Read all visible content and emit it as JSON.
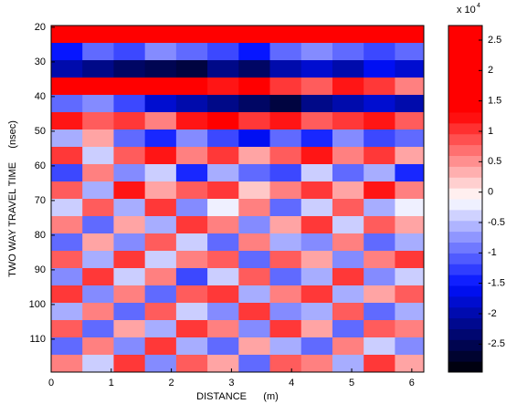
{
  "chart_data": {
    "type": "heatmap",
    "xlabel": "DISTANCE      (m)",
    "ylabel": "TWO WAY TRAVEL TIME     (nsec)",
    "x": [
      0.26,
      0.78,
      1.3,
      1.82,
      2.34,
      2.86,
      3.38,
      3.9,
      4.42,
      4.94,
      5.46,
      5.98
    ],
    "y": [
      22,
      27,
      32,
      37,
      42,
      47,
      52,
      57,
      62,
      67,
      72,
      77,
      82,
      87,
      92,
      97,
      102,
      107,
      112,
      117
    ],
    "z": [
      [
        2,
        2,
        2,
        2,
        2,
        2,
        2,
        2,
        2,
        2,
        2,
        2
      ],
      [
        -1.5,
        -1,
        -1.2,
        -0.8,
        -1,
        -1.2,
        -1.5,
        -1,
        -0.8,
        -1,
        -1.2,
        -1
      ],
      [
        -2,
        -2.2,
        -2.4,
        -2.5,
        -2.6,
        -2.2,
        -2.4,
        -2,
        -1.8,
        -2,
        -1.6,
        -1.8
      ],
      [
        1.5,
        1.8,
        2,
        1.6,
        1.8,
        1.2,
        1.4,
        1,
        0.8,
        1.2,
        1,
        0.6
      ],
      [
        -1,
        -0.8,
        -1.2,
        -1.8,
        -2,
        -2.2,
        -2.4,
        -2.6,
        -2.2,
        -2,
        -1.8,
        -2
      ],
      [
        1.2,
        0.8,
        1,
        0.6,
        1.2,
        1.4,
        1,
        1.2,
        0.8,
        1,
        1.2,
        0.8
      ],
      [
        -0.6,
        0.4,
        -1,
        -1.4,
        -0.8,
        -1.2,
        -1.6,
        -1,
        -1.4,
        -0.8,
        -1.2,
        -1
      ],
      [
        1,
        -0.4,
        0.8,
        1.2,
        0.6,
        1,
        0.4,
        0.8,
        1.2,
        0.6,
        1,
        0.4
      ],
      [
        -1.2,
        0.6,
        -0.8,
        -0.4,
        -1.4,
        -0.6,
        -1,
        -1.2,
        -0.4,
        -1,
        -0.6,
        -1.4
      ],
      [
        0.8,
        -0.6,
        1.2,
        0.4,
        0.8,
        1,
        0.2,
        0.6,
        1,
        0.4,
        1.2,
        0.6
      ],
      [
        -0.4,
        0.8,
        -0.6,
        1,
        -0.8,
        -0.2,
        0.6,
        -1,
        -0.4,
        0.8,
        -0.6,
        -0.2
      ],
      [
        0.6,
        -1,
        0.4,
        -0.6,
        1,
        0.6,
        -0.8,
        0.4,
        1,
        -0.4,
        0.8,
        0.4
      ],
      [
        -1,
        0.4,
        -0.8,
        0.8,
        -0.4,
        -1,
        0.6,
        -0.6,
        -0.8,
        0.6,
        -1,
        -0.6
      ],
      [
        0.8,
        -0.6,
        1,
        -0.4,
        0.6,
        0.8,
        -1,
        0.8,
        0.4,
        -0.8,
        0.6,
        1
      ],
      [
        -0.8,
        1,
        -0.4,
        0.6,
        -1.2,
        -0.4,
        0.8,
        -1,
        -0.6,
        1,
        -0.8,
        -0.4
      ],
      [
        1,
        -0.8,
        0.6,
        -1,
        0.8,
        1,
        -0.6,
        0.6,
        1,
        -0.6,
        0.4,
        0.8
      ],
      [
        -0.6,
        0.6,
        -1,
        0.8,
        -0.4,
        -0.8,
        1,
        -0.8,
        -0.6,
        0.8,
        -1,
        -0.6
      ],
      [
        0.8,
        -1,
        0.4,
        -0.6,
        1,
        0.6,
        -0.8,
        1,
        0.4,
        -1,
        0.8,
        0.6
      ],
      [
        -1,
        0.6,
        -0.8,
        1,
        -0.6,
        -1,
        0.4,
        -0.6,
        -1,
        0.6,
        -0.4,
        -0.8
      ],
      [
        0.6,
        -0.4,
        1,
        -0.8,
        0.8,
        0.4,
        -1,
        0.8,
        0.6,
        -0.6,
        1,
        0.4
      ]
    ],
    "xlim": [
      0,
      6.2
    ],
    "xticks": [
      0,
      1,
      2,
      3,
      4,
      5,
      6
    ],
    "ylim": [
      19.5,
      119.5
    ],
    "yticks": [
      20,
      30,
      40,
      50,
      60,
      70,
      80,
      90,
      100,
      110
    ],
    "yreverse": true,
    "clim": [
      -2.96,
      2.74
    ],
    "cticks": [
      2.5,
      2,
      1.5,
      1,
      0.5,
      0,
      -0.5,
      -1,
      -1.5,
      -2,
      -2.5
    ],
    "colorbar_multiplier": "x 10",
    "colorbar_exponent": "4",
    "colormap": [
      "#000000",
      "#0010ff",
      "#ffffff",
      "#ff0000",
      "#ff0000"
    ]
  }
}
